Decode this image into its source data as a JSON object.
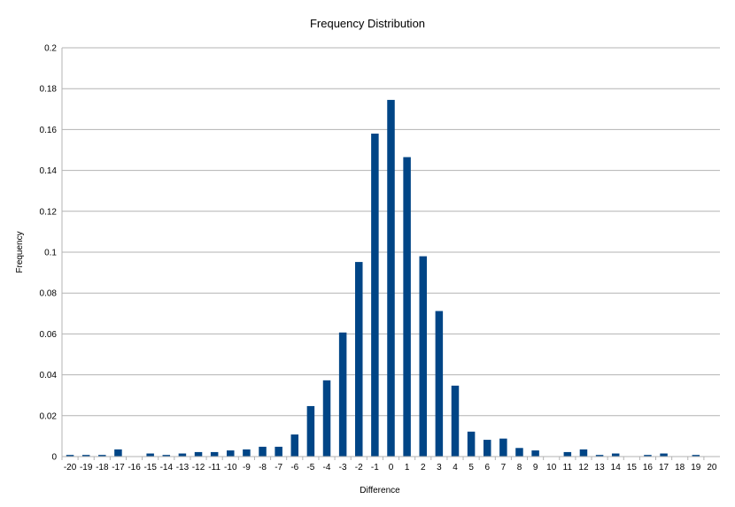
{
  "chart_data": {
    "type": "bar",
    "title": "Frequency Distribution",
    "xlabel": "Difference",
    "ylabel": "Frequency",
    "ylim": [
      0,
      0.2
    ],
    "yticks": [
      "0",
      "0.02",
      "0.04",
      "0.06",
      "0.08",
      "0.1",
      "0.12",
      "0.14",
      "0.16",
      "0.18",
      "0.2"
    ],
    "grid": true,
    "legend": "none",
    "bar_color": "#004586",
    "categories": [
      "-20",
      "-19",
      "-18",
      "-17",
      "-16",
      "-15",
      "-14",
      "-13",
      "-12",
      "-11",
      "-10",
      "-9",
      "-8",
      "-7",
      "-6",
      "-5",
      "-4",
      "-3",
      "-2",
      "-1",
      "0",
      "1",
      "2",
      "3",
      "4",
      "5",
      "6",
      "7",
      "8",
      "9",
      "10",
      "11",
      "12",
      "13",
      "14",
      "15",
      "16",
      "17",
      "18",
      "19",
      "20"
    ],
    "values": [
      0.0008,
      0.0008,
      0.0008,
      0.0035,
      0,
      0.0015,
      0.0008,
      0.0015,
      0.0022,
      0.0022,
      0.003,
      0.0035,
      0.0048,
      0.0048,
      0.0108,
      0.0247,
      0.0373,
      0.0607,
      0.0952,
      0.158,
      0.1745,
      0.1465,
      0.098,
      0.0712,
      0.0347,
      0.0122,
      0.0082,
      0.0088,
      0.0042,
      0.003,
      0,
      0.0022,
      0.0035,
      0.0008,
      0.0015,
      0,
      0.0008,
      0.0015,
      0,
      0.0008,
      0
    ]
  }
}
